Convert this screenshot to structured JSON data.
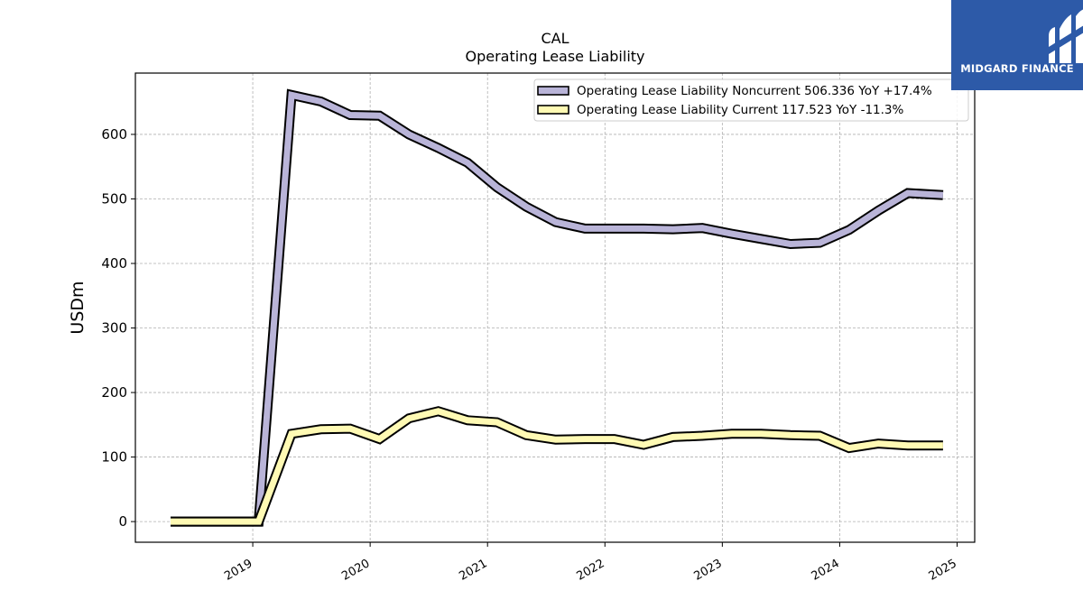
{
  "brand": {
    "name": "MIDGARD FINANCE",
    "bg_color": "#2d5aa8"
  },
  "chart_data": {
    "type": "line",
    "title": "CAL",
    "subtitle": "Operating Lease Liability",
    "ylabel": "USDm",
    "xlabel": "",
    "ylim": [
      -32,
      695
    ],
    "xlim": [
      2018.0,
      2025.15
    ],
    "xticks": [
      "2019",
      "2020",
      "2021",
      "2022",
      "2023",
      "2024",
      "2025"
    ],
    "yticks": [
      0,
      100,
      200,
      300,
      400,
      500,
      600
    ],
    "grid": true,
    "legend_position": "top-right",
    "series": [
      {
        "name": "Operating Lease Liability Noncurrent",
        "legend_label": "Operating Lease Liability Noncurrent  506.336 YoY +17.4%",
        "color": "#b9b4d8",
        "x": [
          2018.3,
          2018.55,
          2018.8,
          2019.05,
          2019.33,
          2019.58,
          2019.83,
          2020.08,
          2020.33,
          2020.58,
          2020.83,
          2021.08,
          2021.33,
          2021.58,
          2021.83,
          2022.08,
          2022.33,
          2022.58,
          2022.83,
          2023.08,
          2023.33,
          2023.58,
          2023.83,
          2024.08,
          2024.33,
          2024.58,
          2024.88
        ],
        "y": [
          0,
          0,
          0,
          0,
          661,
          651,
          630,
          629,
          600,
          579,
          556,
          518,
          488,
          464,
          454,
          454,
          454,
          453,
          455,
          446,
          438,
          430,
          432,
          452,
          482,
          509,
          506
        ]
      },
      {
        "name": "Operating Lease Liability Current",
        "legend_label": "Operating Lease Liability Current  117.523 YoY -11.3%",
        "color": "#fffab4",
        "x": [
          2018.3,
          2018.55,
          2018.8,
          2019.05,
          2019.33,
          2019.58,
          2019.83,
          2020.08,
          2020.33,
          2020.58,
          2020.83,
          2021.08,
          2021.33,
          2021.58,
          2021.83,
          2022.08,
          2022.33,
          2022.58,
          2022.83,
          2023.08,
          2023.33,
          2023.58,
          2023.83,
          2024.08,
          2024.33,
          2024.58,
          2024.88
        ],
        "y": [
          0,
          0,
          0,
          0,
          136,
          143,
          144,
          128,
          160,
          171,
          157,
          154,
          134,
          127,
          128,
          128,
          119,
          131,
          133,
          136,
          136,
          134,
          133,
          114,
          121,
          118,
          118
        ]
      }
    ]
  }
}
